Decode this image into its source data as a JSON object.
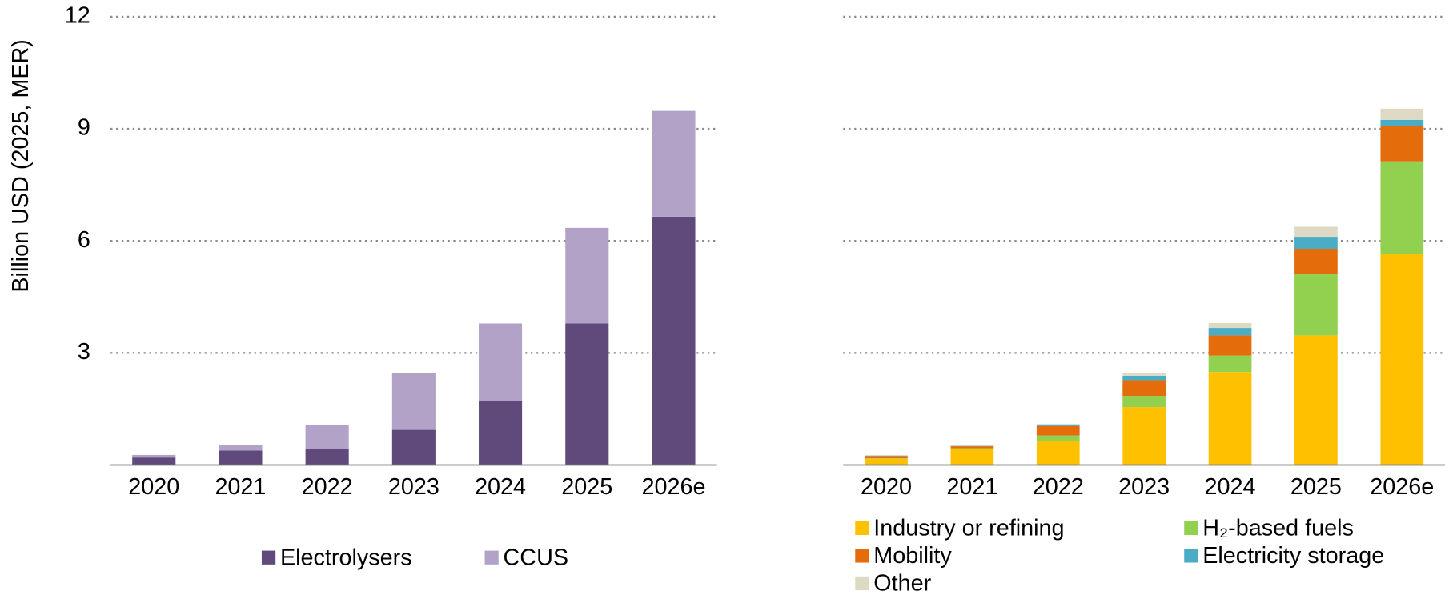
{
  "chart_data": [
    {
      "type": "stacked_bar",
      "y_axis_label": "Billion USD (2025, MER)",
      "categories": [
        "2020",
        "2021",
        "2022",
        "2023",
        "2024",
        "2025",
        "2026e"
      ],
      "ylim": [
        0,
        12
      ],
      "yticks": [
        3,
        6,
        9,
        12
      ],
      "show_ytick_labels": true,
      "grid": true,
      "legend_columns": 2,
      "series": [
        {
          "name": "Electrolysers",
          "color": "#604a7b",
          "values": [
            0.2,
            0.39,
            0.42,
            0.94,
            1.72,
            3.79,
            6.65
          ]
        },
        {
          "name": "CCUS",
          "color": "#b3a2c7",
          "values": [
            0.07,
            0.15,
            0.66,
            1.52,
            2.07,
            2.56,
            2.83
          ]
        }
      ]
    },
    {
      "type": "stacked_bar",
      "categories": [
        "2020",
        "2021",
        "2022",
        "2023",
        "2024",
        "2025",
        "2026e"
      ],
      "ylim": [
        0,
        12
      ],
      "yticks": [
        3,
        6,
        9,
        12
      ],
      "show_ytick_labels": false,
      "grid": true,
      "legend_columns": 2,
      "series": [
        {
          "name": "Industry or refining",
          "color": "#ffc000",
          "values": [
            0.17,
            0.44,
            0.64,
            1.55,
            2.49,
            3.47,
            5.64
          ]
        },
        {
          "name": "H₂-based fuels",
          "color": "#92d050",
          "values": [
            0.01,
            0.01,
            0.15,
            0.3,
            0.44,
            1.65,
            2.49
          ]
        },
        {
          "name": "Mobility",
          "color": "#e46c0a",
          "values": [
            0.06,
            0.05,
            0.25,
            0.42,
            0.54,
            0.67,
            0.94
          ]
        },
        {
          "name": "Electricity storage",
          "color": "#4bacc6",
          "values": [
            0.01,
            0.01,
            0.03,
            0.12,
            0.2,
            0.32,
            0.17
          ]
        },
        {
          "name": "Other",
          "color": "#ddd9c3",
          "values": [
            0.02,
            0.03,
            0.03,
            0.07,
            0.13,
            0.27,
            0.3
          ]
        }
      ]
    }
  ]
}
